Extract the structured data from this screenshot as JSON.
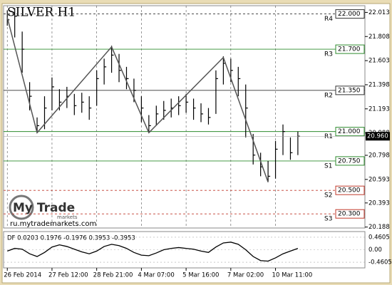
{
  "chart_data": {
    "type": "ohlc",
    "title": "SILVER H1",
    "watermark": {
      "brand": "My Trade",
      "sub": "markets",
      "url": "ru.mytrademarkets.com"
    },
    "bar_color": "#000000",
    "high": [
      22.03,
      22.05,
      21.85,
      21.42,
      21.12,
      21.3,
      21.46,
      21.36,
      21.38,
      21.32,
      21.33,
      21.3,
      21.52,
      21.62,
      21.73,
      21.66,
      21.55,
      21.45,
      21.3,
      21.14,
      21.22,
      21.26,
      21.28,
      21.3,
      21.32,
      21.28,
      21.24,
      21.2,
      21.52,
      21.64,
      21.62,
      21.55,
      21.4,
      20.98,
      20.82,
      20.75,
      20.92,
      21.06,
      20.95,
      21.0
    ],
    "low": [
      21.9,
      21.8,
      21.5,
      21.18,
      20.99,
      21.02,
      21.18,
      21.18,
      21.2,
      21.14,
      21.16,
      21.1,
      21.22,
      21.4,
      21.5,
      21.42,
      21.36,
      21.25,
      21.08,
      20.99,
      21.05,
      21.1,
      21.12,
      21.14,
      21.16,
      21.1,
      21.08,
      21.06,
      21.15,
      21.4,
      21.42,
      21.3,
      20.95,
      20.72,
      20.62,
      20.57,
      20.6,
      20.8,
      20.76,
      20.8
    ],
    "close": [
      21.95,
      21.98,
      21.7,
      21.3,
      21.05,
      21.2,
      21.38,
      21.25,
      21.3,
      21.22,
      21.25,
      21.2,
      21.45,
      21.55,
      21.65,
      21.52,
      21.45,
      21.35,
      21.2,
      21.05,
      21.15,
      21.18,
      21.2,
      21.22,
      21.25,
      21.2,
      21.15,
      21.12,
      21.45,
      21.58,
      21.52,
      21.45,
      21.2,
      20.8,
      20.7,
      20.62,
      20.85,
      21.0,
      20.82,
      20.96
    ],
    "zigzag": {
      "index": [
        0,
        4,
        14,
        19,
        29,
        35
      ],
      "values": [
        21.97,
        20.99,
        21.72,
        20.99,
        21.63,
        20.57
      ],
      "color": "#555555"
    },
    "ylim": [
      20.18,
      22.07
    ],
    "yticks": [
      22.013,
      21.808,
      21.603,
      21.398,
      21.193,
      20.988,
      20.798,
      20.593,
      20.393,
      20.188
    ],
    "current_price": {
      "value": 20.96,
      "label": "20.960"
    },
    "levels": [
      {
        "name": "R4",
        "value": 22.0,
        "label": "22.000",
        "color": "#333333",
        "dashed": true
      },
      {
        "name": "R3",
        "value": 21.7,
        "label": "21.700",
        "color": "#2e8b2e",
        "dashed": false
      },
      {
        "name": "R2",
        "value": 21.35,
        "label": "21.350",
        "color": "#333333",
        "dashed": false
      },
      {
        "name": "R1",
        "value": 21.0,
        "label": "21.000",
        "color": "#2e8b2e",
        "dashed": false
      },
      {
        "name": "S1",
        "value": 20.75,
        "label": "20.750",
        "color": "#2e8b2e",
        "dashed": false
      },
      {
        "name": "S2",
        "value": 20.5,
        "label": "20.500",
        "color": "#c0392b",
        "dashed": true
      },
      {
        "name": "S3",
        "value": 20.3,
        "label": "20.300",
        "color": "#c0392b",
        "dashed": true
      }
    ],
    "xlim": [
      -0.5,
      48
    ],
    "xticks": [
      {
        "value": 0,
        "label": "26 Feb 2014"
      },
      {
        "value": 6,
        "label": "27 Feb 12:00"
      },
      {
        "value": 12,
        "label": "28 Feb 21:00"
      },
      {
        "value": 18,
        "label": "4 Mar 07:00"
      },
      {
        "value": 24,
        "label": "5 Mar 16:00"
      },
      {
        "value": 30,
        "label": "7 Mar 02:00"
      },
      {
        "value": 36,
        "label": "10 Mar 11:00"
      }
    ],
    "indicator": {
      "label": "DF 0.0203 0.1976 -0.1976 0.3953 -0.3953",
      "color": "#000000",
      "values": [
        -0.05,
        0.05,
        0.02,
        -0.15,
        -0.25,
        -0.1,
        0.1,
        0.18,
        0.12,
        0.02,
        -0.08,
        -0.15,
        -0.05,
        0.12,
        0.2,
        0.15,
        0.05,
        -0.1,
        -0.2,
        -0.22,
        -0.12,
        0.0,
        0.05,
        0.08,
        0.05,
        0.02,
        -0.05,
        -0.1,
        0.1,
        0.25,
        0.28,
        0.2,
        0.0,
        -0.25,
        -0.4,
        -0.42,
        -0.3,
        -0.15,
        -0.05,
        0.05
      ],
      "ylim": [
        -0.67,
        0.67
      ],
      "yticks": [
        0.4605,
        {
          "value": 0,
          "label": "0.00"
        },
        -0.4605
      ]
    }
  }
}
